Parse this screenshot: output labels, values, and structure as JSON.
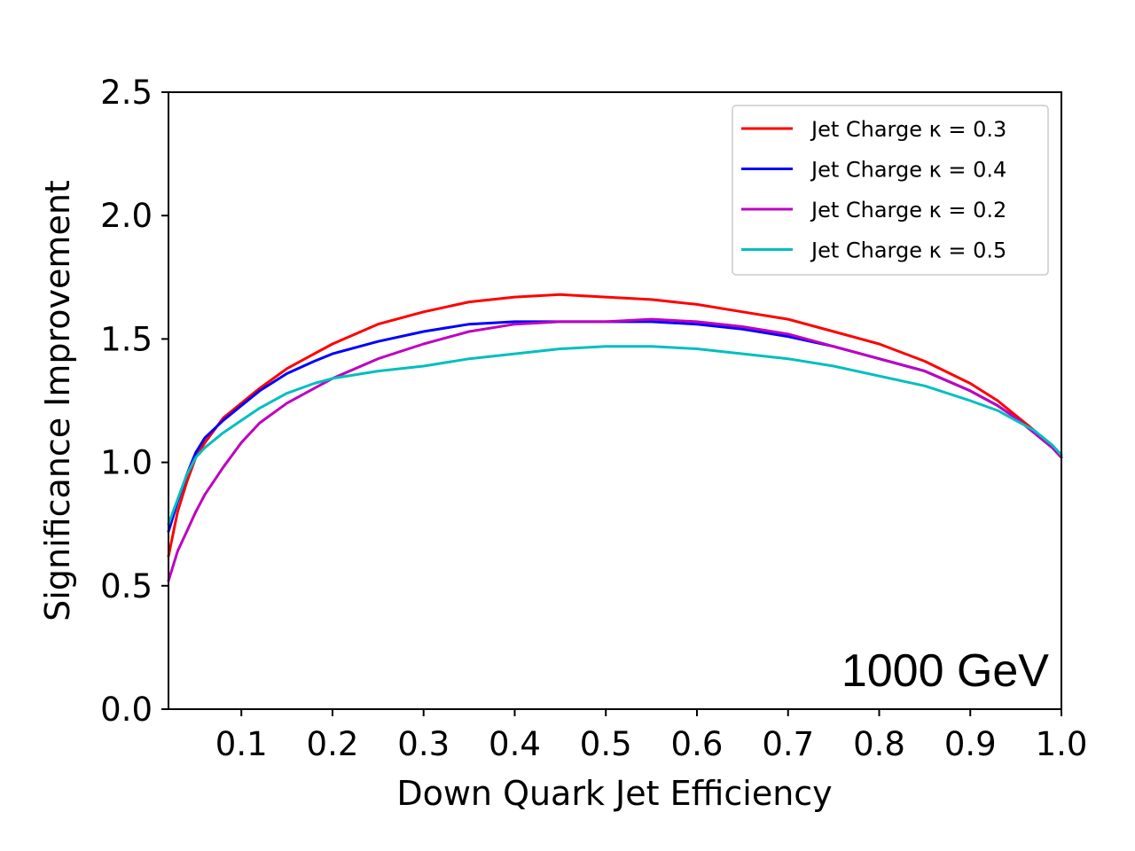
{
  "chart_data": {
    "type": "line",
    "title": "",
    "xlabel": "Down Quark Jet Efficiency",
    "ylabel": "Significance Improvement",
    "xlim": [
      0.02,
      1.0
    ],
    "ylim": [
      0.0,
      2.5
    ],
    "xticks": [
      0.1,
      0.2,
      0.3,
      0.4,
      0.5,
      0.6,
      0.7,
      0.8,
      0.9,
      1.0
    ],
    "xtick_labels": [
      "0.1",
      "0.2",
      "0.3",
      "0.4",
      "0.5",
      "0.6",
      "0.7",
      "0.8",
      "0.9",
      "1.0"
    ],
    "yticks": [
      0.0,
      0.5,
      1.0,
      1.5,
      2.0,
      2.5
    ],
    "ytick_labels": [
      "0.0",
      "0.5",
      "1.0",
      "1.5",
      "2.0",
      "2.5"
    ],
    "grid": false,
    "legend_position": "top-right",
    "annotation": "1000 GeV",
    "series": [
      {
        "name": "Jet Charge κ = 0.3",
        "color": "#ff0000",
        "x": [
          0.02,
          0.03,
          0.04,
          0.05,
          0.06,
          0.08,
          0.1,
          0.12,
          0.15,
          0.18,
          0.2,
          0.25,
          0.3,
          0.35,
          0.4,
          0.45,
          0.5,
          0.55,
          0.6,
          0.65,
          0.7,
          0.75,
          0.8,
          0.85,
          0.9,
          0.93,
          0.95,
          0.97,
          0.99,
          1.0
        ],
        "y": [
          0.62,
          0.8,
          0.92,
          1.02,
          1.08,
          1.18,
          1.24,
          1.3,
          1.38,
          1.44,
          1.48,
          1.56,
          1.61,
          1.65,
          1.67,
          1.68,
          1.67,
          1.66,
          1.64,
          1.61,
          1.58,
          1.53,
          1.48,
          1.41,
          1.32,
          1.25,
          1.19,
          1.13,
          1.06,
          1.02
        ]
      },
      {
        "name": "Jet Charge κ = 0.4",
        "color": "#0000ff",
        "x": [
          0.02,
          0.03,
          0.04,
          0.05,
          0.06,
          0.08,
          0.1,
          0.12,
          0.15,
          0.18,
          0.2,
          0.25,
          0.3,
          0.35,
          0.4,
          0.45,
          0.5,
          0.55,
          0.6,
          0.65,
          0.7,
          0.75,
          0.8,
          0.85,
          0.9,
          0.93,
          0.95,
          0.97,
          0.99,
          1.0
        ],
        "y": [
          0.72,
          0.84,
          0.95,
          1.04,
          1.1,
          1.17,
          1.23,
          1.29,
          1.36,
          1.41,
          1.44,
          1.49,
          1.53,
          1.56,
          1.57,
          1.57,
          1.57,
          1.57,
          1.56,
          1.54,
          1.51,
          1.47,
          1.42,
          1.37,
          1.29,
          1.23,
          1.18,
          1.12,
          1.06,
          1.02
        ]
      },
      {
        "name": "Jet Charge κ = 0.2",
        "color": "#bf00bf",
        "x": [
          0.02,
          0.03,
          0.04,
          0.05,
          0.06,
          0.08,
          0.1,
          0.12,
          0.15,
          0.18,
          0.2,
          0.25,
          0.3,
          0.35,
          0.4,
          0.45,
          0.5,
          0.55,
          0.6,
          0.65,
          0.7,
          0.75,
          0.8,
          0.85,
          0.9,
          0.93,
          0.95,
          0.97,
          0.99,
          1.0
        ],
        "y": [
          0.52,
          0.64,
          0.72,
          0.8,
          0.87,
          0.98,
          1.08,
          1.16,
          1.24,
          1.3,
          1.34,
          1.42,
          1.48,
          1.53,
          1.56,
          1.57,
          1.57,
          1.58,
          1.57,
          1.55,
          1.52,
          1.47,
          1.42,
          1.37,
          1.29,
          1.23,
          1.18,
          1.12,
          1.06,
          1.02
        ]
      },
      {
        "name": "Jet Charge κ = 0.5",
        "color": "#00bfbf",
        "x": [
          0.02,
          0.03,
          0.04,
          0.05,
          0.06,
          0.08,
          0.1,
          0.12,
          0.15,
          0.18,
          0.2,
          0.25,
          0.3,
          0.35,
          0.4,
          0.45,
          0.5,
          0.55,
          0.6,
          0.65,
          0.7,
          0.75,
          0.8,
          0.85,
          0.9,
          0.93,
          0.95,
          0.97,
          0.99,
          1.0
        ],
        "y": [
          0.75,
          0.85,
          0.95,
          1.02,
          1.06,
          1.12,
          1.17,
          1.22,
          1.28,
          1.32,
          1.34,
          1.37,
          1.39,
          1.42,
          1.44,
          1.46,
          1.47,
          1.47,
          1.46,
          1.44,
          1.42,
          1.39,
          1.35,
          1.31,
          1.25,
          1.21,
          1.17,
          1.13,
          1.07,
          1.03
        ]
      }
    ]
  }
}
